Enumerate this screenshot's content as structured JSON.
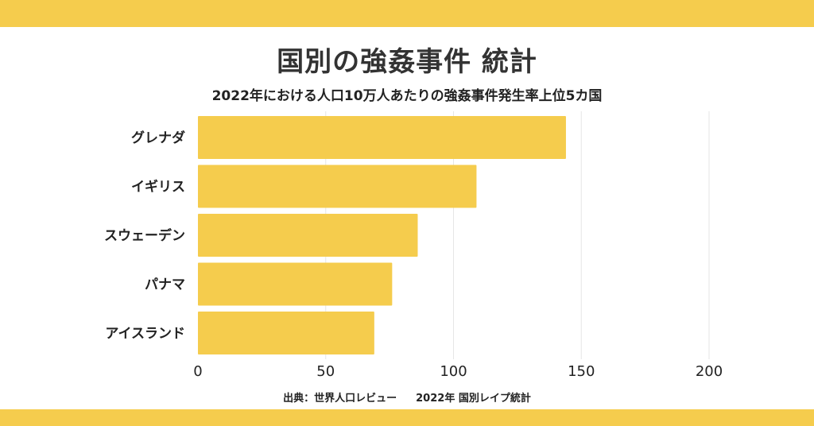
{
  "header": {
    "title": "国別の強姦事件 統計",
    "subtitle": "2022年における人口10万人あたりの強姦事件発生率上位5カ国"
  },
  "footer": {
    "source_prefix": "出典：世界人口レビュー",
    "source_title": "2022年 国別レイプ統計"
  },
  "colors": {
    "accent": "#f5cc4d",
    "bar": "#f5cc4d",
    "grid": "#e6e6e6",
    "text": "#222222"
  },
  "chart_data": {
    "type": "bar",
    "orientation": "horizontal",
    "categories": [
      "グレナダ",
      "イギリス",
      "スウェーデン",
      "パナマ",
      "アイスランド"
    ],
    "values": [
      144,
      109,
      86,
      76,
      69
    ],
    "xlim": [
      0,
      240
    ],
    "xticks": [
      0,
      50,
      100,
      150,
      200
    ],
    "title": "国別の強姦事件 統計",
    "subtitle": "2022年における人口10万人あたりの強姦事件発生率上位5カ国",
    "xlabel": "",
    "ylabel": "",
    "grid": "vertical",
    "legend": "none"
  }
}
